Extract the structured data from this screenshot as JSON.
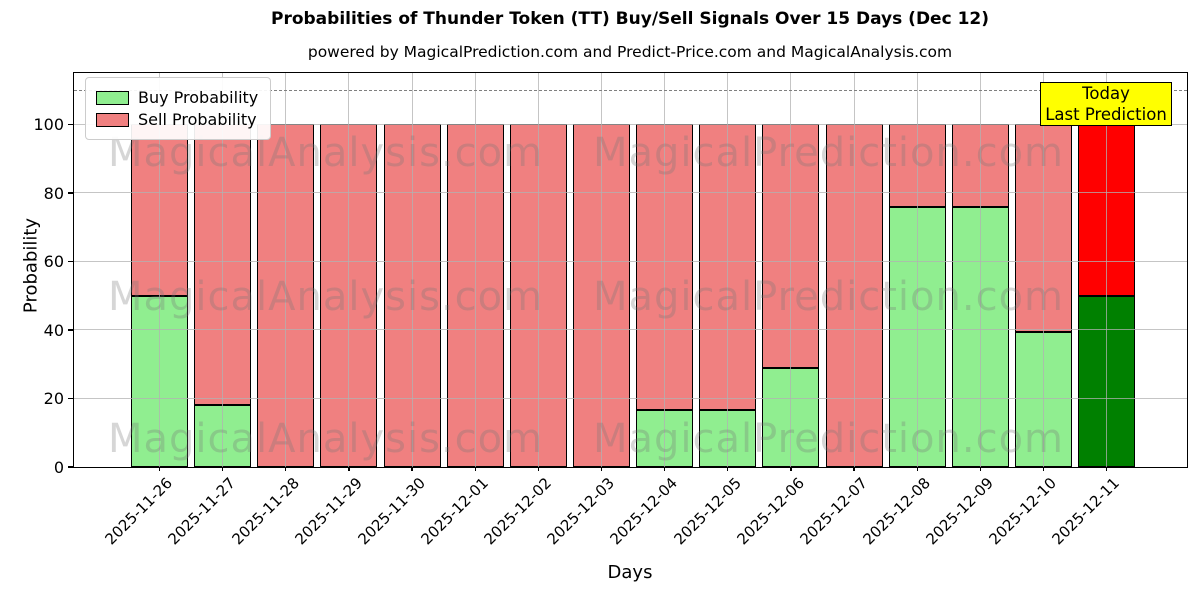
{
  "title": "Probabilities of Thunder Token (TT) Buy/Sell Signals Over 15 Days (Dec 12)",
  "subtitle": "powered by MagicalPrediction.com and Predict-Price.com and MagicalAnalysis.com",
  "axes": {
    "xlabel": "Days",
    "ylabel": "Probability"
  },
  "legend": {
    "items": [
      {
        "label": "Buy Probability",
        "color": "#90EE90"
      },
      {
        "label": "Sell Probability",
        "color": "#F08080"
      }
    ]
  },
  "annotation": {
    "lines": [
      "Today",
      "Last Prediction"
    ],
    "bg": "#FFFF00"
  },
  "watermarks": {
    "left": "MagicalAnalysis.com",
    "right": "MagicalPrediction.com"
  },
  "colors": {
    "buy": "#90EE90",
    "sell": "#F08080",
    "buy_today": "#008000",
    "sell_today": "#FF0000",
    "grid": "#b2b2b2",
    "dashed_line": "#7f7f7f",
    "annotation_bg": "#FFFF00"
  },
  "chart_data": {
    "type": "bar",
    "stacked": true,
    "title": "Probabilities of Thunder Token (TT) Buy/Sell Signals Over 15 Days (Dec 12)",
    "xlabel": "Days",
    "ylabel": "Probability",
    "categories": [
      "2025-11-26",
      "2025-11-27",
      "2025-11-28",
      "2025-11-29",
      "2025-11-30",
      "2025-12-01",
      "2025-12-02",
      "2025-12-03",
      "2025-12-04",
      "2025-12-05",
      "2025-12-06",
      "2025-12-07",
      "2025-12-08",
      "2025-12-09",
      "2025-12-10",
      "2025-12-11"
    ],
    "series": [
      {
        "name": "Buy Probability",
        "color": "#90EE90",
        "today_color": "#008000",
        "values": [
          50,
          18,
          0,
          0,
          0,
          0,
          0,
          0,
          16.5,
          16.5,
          29,
          0,
          76,
          76,
          39.5,
          50
        ]
      },
      {
        "name": "Sell Probability",
        "color": "#F08080",
        "today_color": "#FF0000",
        "values": [
          50,
          82,
          100,
          100,
          100,
          100,
          100,
          100,
          83.5,
          83.5,
          71,
          100,
          24,
          24,
          60.5,
          50
        ]
      }
    ],
    "today_index": 15,
    "yticks": [
      0,
      20,
      40,
      60,
      80,
      100
    ],
    "ylim": [
      0,
      115
    ],
    "dashed_hline": 110,
    "grid": true,
    "legend_position": "upper left"
  }
}
